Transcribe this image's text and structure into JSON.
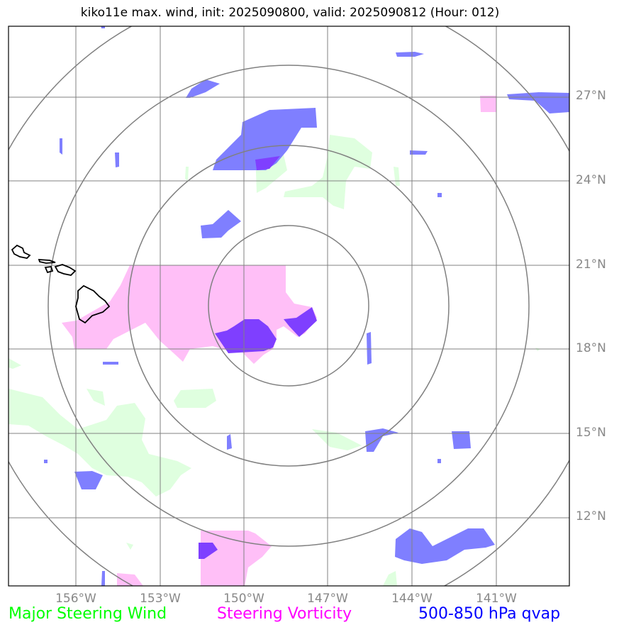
{
  "title": "kiko11e max. wind, init: 2025090800, valid: 2025090812 (Hour: 012)",
  "lat_labels": [
    "27°N",
    "24°N",
    "21°N",
    "18°N",
    "15°N",
    "12°N"
  ],
  "lon_labels": [
    "156°W",
    "153°W",
    "150°W",
    "147°W",
    "144°W",
    "141°W"
  ],
  "legend": {
    "wind": "Major Steering Wind",
    "vorticity": "Steering Vorticity",
    "qvap": "500-850 hPa qvap"
  },
  "colors": {
    "wind": "#00ff00",
    "vorticity": "#ff00ff",
    "qvap": "#0000ff",
    "wind_fill": "#dfffdf",
    "vorticity_fill": "#ffbff7",
    "qvap_fill": "#7f7fff",
    "overlap_fill": "#7f3fff",
    "grid": "#808080",
    "coast": "#000000"
  },
  "map": {
    "lon_range": [
      "-158.5W",
      "-138.3W"
    ],
    "lat_range": [
      "9.8N",
      "29.7N"
    ],
    "range_rings": 4,
    "features": [
      "Hawaiian Islands coastline"
    ]
  }
}
